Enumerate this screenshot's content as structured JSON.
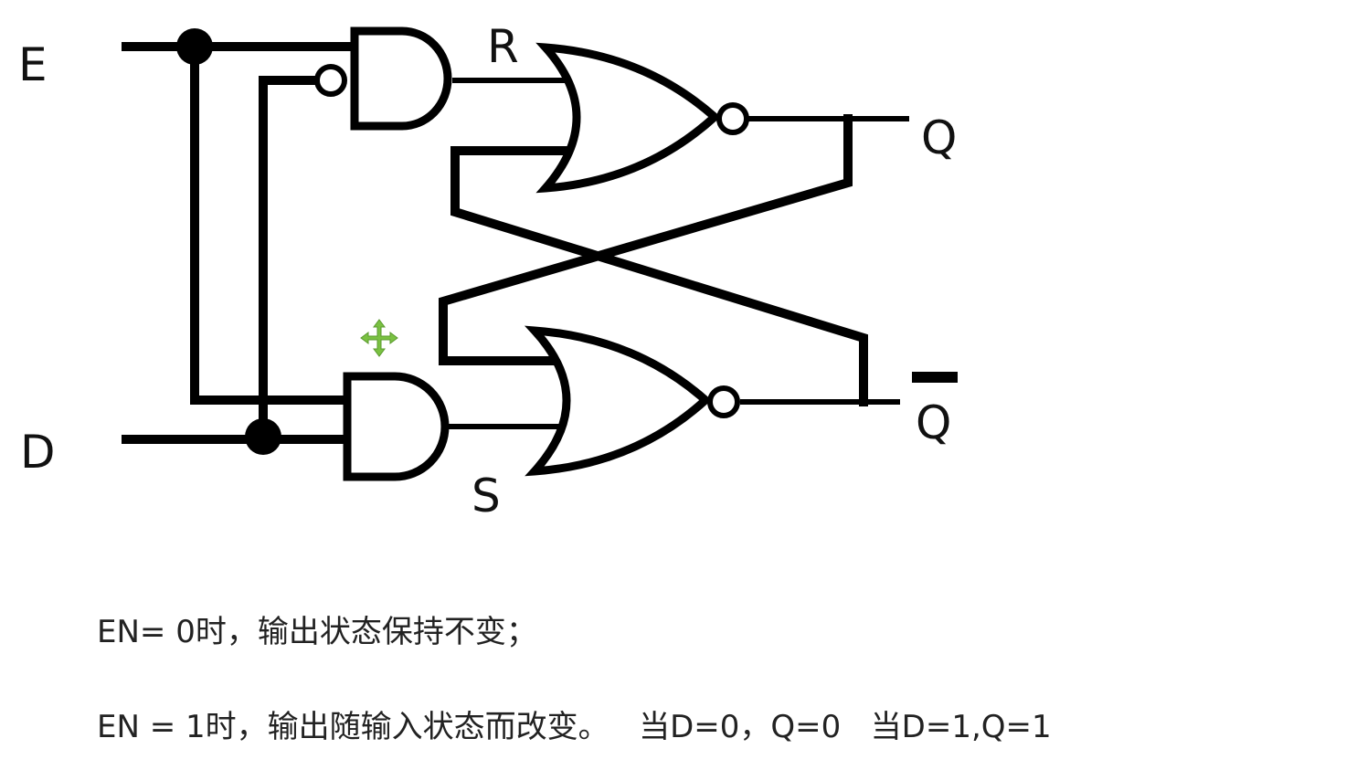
{
  "diagram": {
    "labels": {
      "input_e": "E",
      "input_d": "D",
      "signal_r": "R",
      "signal_s": "S",
      "output_q": "Q",
      "output_qbar": "Q"
    }
  },
  "notes": {
    "line1": "EN= 0时，输出状态保持不变；",
    "line2": "EN = 1时，输出随输入状态而改变。   当D=0，Q=0   当D=1,Q=1"
  },
  "colors": {
    "line": "#000000",
    "text": "#222222",
    "cursor": "#7ac142"
  },
  "icons": {
    "cursor": "move-cursor-icon"
  }
}
